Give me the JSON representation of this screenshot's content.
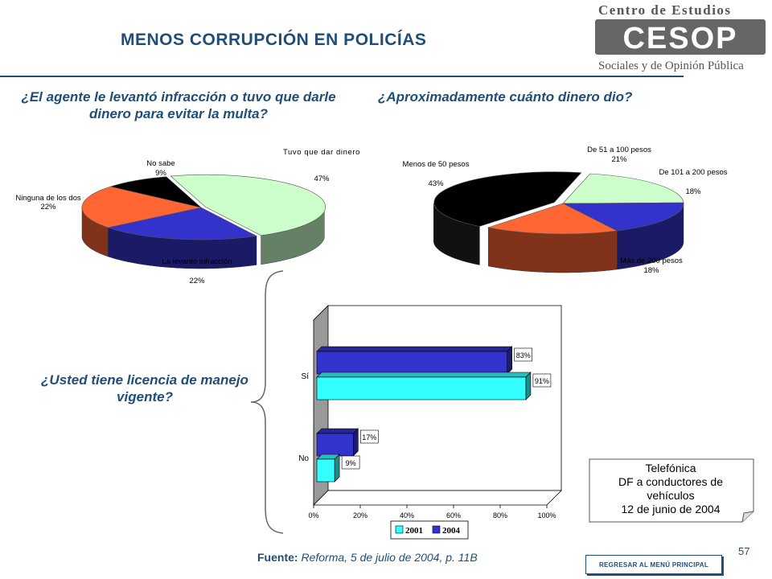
{
  "page": {
    "title": "MENOS CORRUPCIÓN EN POLICÍAS",
    "logo": {
      "line1": "Centro de Estudios",
      "mark": "CESOP",
      "line2": "Sociales y de Opinión Pública"
    },
    "source_label": "Fuente:",
    "source_text": "Reforma, 5 de julio de 2004, p. 11B",
    "note_lines": [
      "Telefónica",
      "DF a conductores de",
      "vehículos",
      "12 de junio de 2004"
    ],
    "page_number": "57",
    "back_button": "REGRESAR AL MENÚ PRINCIPAL"
  },
  "chart_data": [
    {
      "type": "pie",
      "title": "¿El agente le levantó infracción o tuvo que darle dinero para evitar la multa?",
      "slices": [
        {
          "label": "Tuvo que dar dinero",
          "value": 47,
          "display": "47%",
          "color": "#ccffcc"
        },
        {
          "label": "La levantó infracción",
          "value": 22,
          "display": "22%",
          "color": "#3333cc"
        },
        {
          "label": "Ninguna de los dos",
          "value": 22,
          "display": "22%",
          "color": "#ff6633"
        },
        {
          "label": "No sabe",
          "value": 9,
          "display": "9%",
          "color": "#000000"
        }
      ]
    },
    {
      "type": "pie",
      "title": "¿Aproximadamente cuánto dinero dio?",
      "slices": [
        {
          "label": "De 51 a 100 pesos",
          "value": 21,
          "display": "21%",
          "color": "#ccffcc"
        },
        {
          "label": "De 101 a 200 pesos",
          "value": 18,
          "display": "18%",
          "color": "#3333cc"
        },
        {
          "label": "Más de 200 pesos",
          "value": 18,
          "display": "18%",
          "color": "#ff6633"
        },
        {
          "label": "Menos de 50 pesos",
          "value": 43,
          "display": "43%",
          "color": "#000000"
        }
      ]
    },
    {
      "type": "bar",
      "orientation": "horizontal",
      "title": "¿Usted tiene licencia de manejo vigente?",
      "categories": [
        "Sí",
        "No"
      ],
      "series": [
        {
          "name": "2001",
          "values": [
            91,
            9
          ],
          "display": [
            "91%",
            "9%"
          ],
          "color": "#33ffff"
        },
        {
          "name": "2004",
          "values": [
            83,
            17
          ],
          "display": [
            "83%",
            "17%"
          ],
          "color": "#3333cc"
        }
      ],
      "xlim": [
        0,
        100
      ],
      "x_ticks": [
        "0%",
        "20%",
        "40%",
        "60%",
        "80%",
        "100%"
      ],
      "legend": "bottom"
    }
  ]
}
